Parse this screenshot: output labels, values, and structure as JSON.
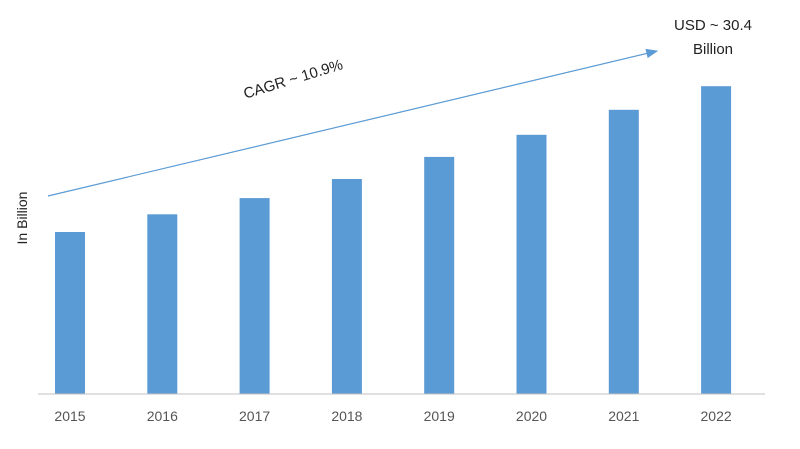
{
  "chart_data": {
    "type": "bar",
    "categories": [
      "2015",
      "2016",
      "2017",
      "2018",
      "2019",
      "2020",
      "2021",
      "2022"
    ],
    "values": [
      11.0,
      12.2,
      13.3,
      14.6,
      16.1,
      17.6,
      19.3,
      20.9
    ],
    "ylabel": "In Billion",
    "xlabel": "",
    "title": "",
    "ylim": [
      0,
      22
    ],
    "grid": false,
    "bar_color": "#5b9bd5",
    "annotations": {
      "cagr": "CAGR ~ 10.9%",
      "callout_line1": "USD ~ 30.4",
      "callout_line2": "Billion"
    }
  }
}
